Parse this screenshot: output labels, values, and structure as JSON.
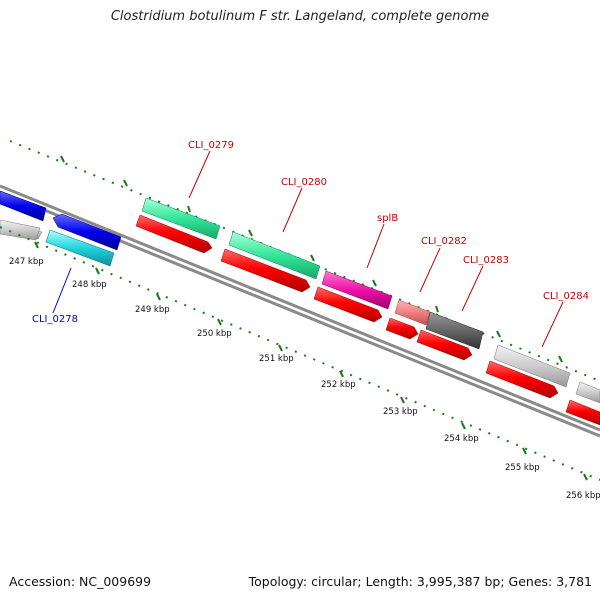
{
  "title": "Clostridium botulinum F str. Langeland, complete genome",
  "footer": {
    "accession": "Accession: NC_009699",
    "summary": "Topology: circular; Length: 3,995,387 bp; Genes: 3,781"
  },
  "tick_labels": [
    "247 kbp",
    "248 kbp",
    "249 kbp",
    "250 kbp",
    "251 kbp",
    "252 kbp",
    "253 kbp",
    "254 kbp",
    "255 kbp",
    "256 kbp"
  ],
  "gene_labels": {
    "cli0278": "CLI_0278",
    "cli0279": "CLI_0279",
    "cli0280": "CLI_0280",
    "splb": "splB",
    "cli0282": "CLI_0282",
    "cli0283": "CLI_0283",
    "cli0284": "CLI_0284"
  },
  "colors": {
    "tick": "#1a7a1a",
    "backbone": "#888888",
    "cds": "#ff0000",
    "highlight_label": "#cc0000",
    "minus_label": "#0000cc"
  }
}
